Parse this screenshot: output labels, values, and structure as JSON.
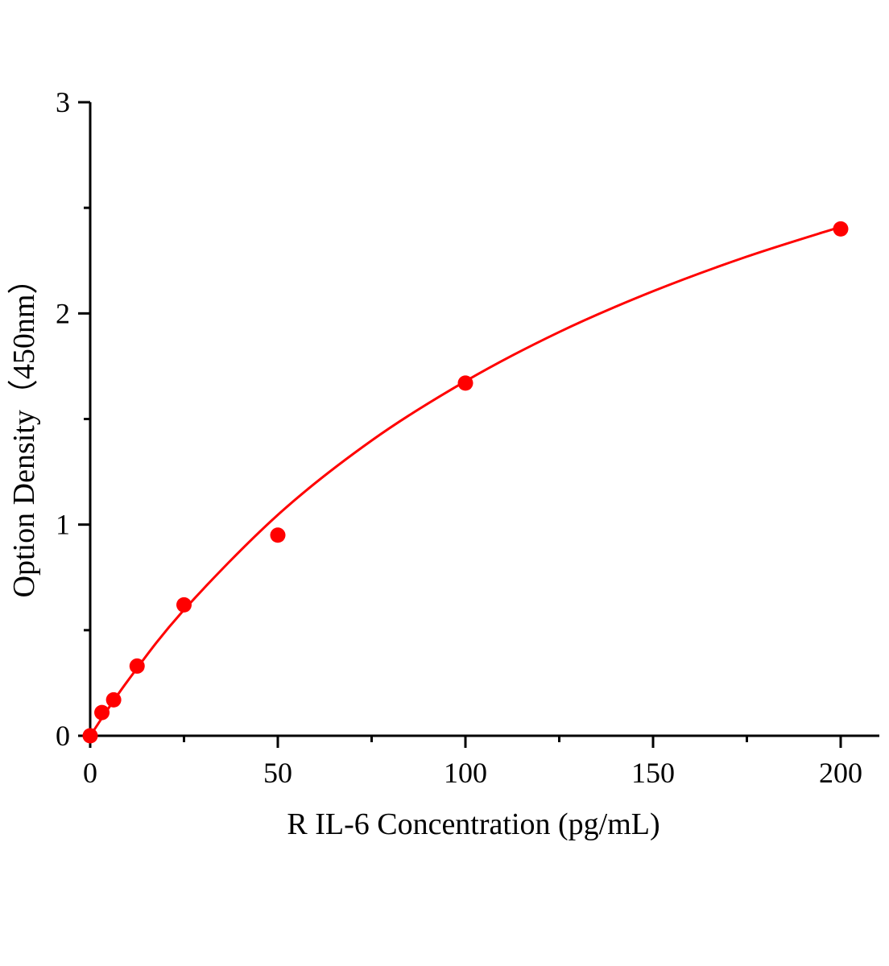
{
  "chart_data": {
    "type": "scatter",
    "title": "",
    "xlabel": "R IL-6 Concentration (pg/mL)",
    "ylabel": "Option Density（450nm）",
    "xlim": [
      0,
      205
    ],
    "ylim": [
      0,
      3
    ],
    "xticks": [
      "0",
      "50",
      "100",
      "150",
      "200"
    ],
    "yticks": [
      "0",
      "1",
      "2",
      "3"
    ],
    "grid": false,
    "legend": "none",
    "colors": {
      "series": "#ff0000",
      "axis": "#000000"
    },
    "series": [
      {
        "kind": "points",
        "x": [
          0,
          3.125,
          6.25,
          12.5,
          25,
          50,
          100,
          200
        ],
        "y": [
          0,
          0.11,
          0.17,
          0.33,
          0.62,
          0.95,
          1.67,
          2.4
        ]
      },
      {
        "kind": "fit-curve",
        "x": [
          0,
          10,
          25,
          50,
          75,
          100,
          125,
          150,
          175,
          200
        ],
        "y": [
          0,
          0.26,
          0.596,
          1.046,
          1.398,
          1.679,
          1.912,
          2.105,
          2.269,
          2.41
        ]
      }
    ]
  }
}
